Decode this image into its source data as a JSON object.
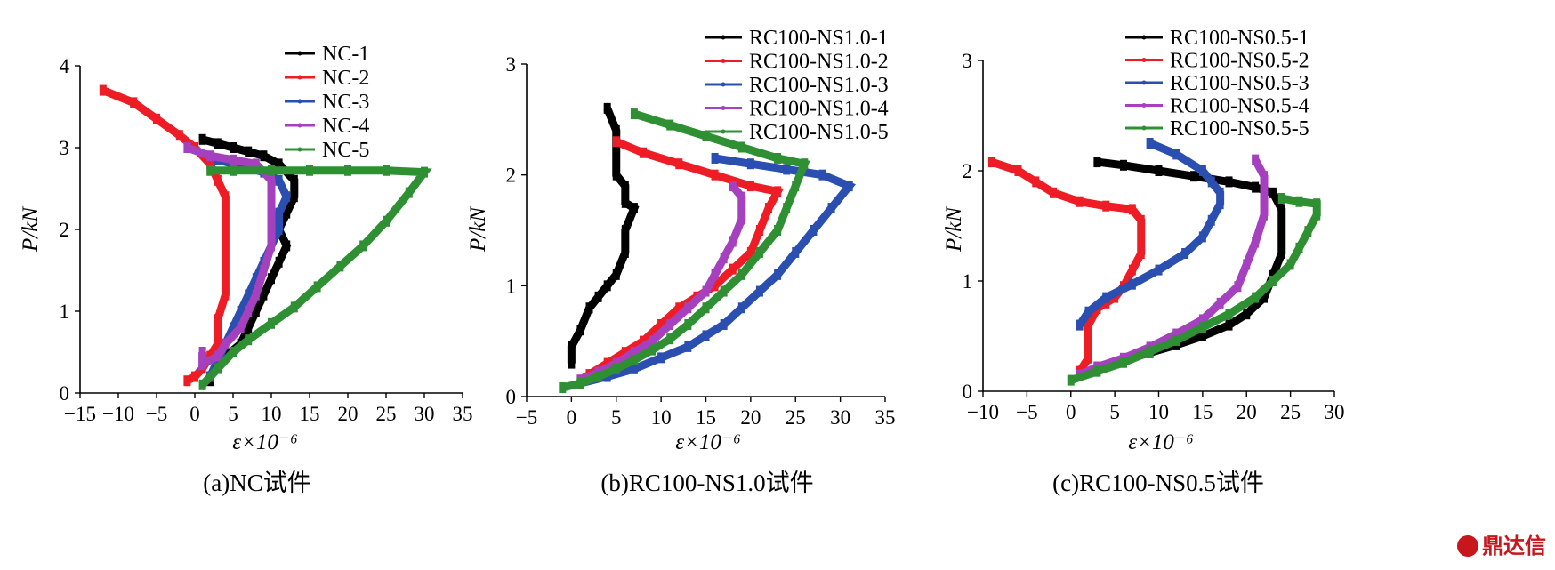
{
  "watermark": "鼎达信",
  "chart_data": [
    {
      "type": "line",
      "caption": "(a)NC试件",
      "xlabel": "ε×10⁻⁶",
      "ylabel": "P/kN",
      "xlim": [
        -15,
        35
      ],
      "ylim": [
        0,
        4
      ],
      "xticks": [
        -15,
        -10,
        -5,
        0,
        5,
        10,
        15,
        20,
        25,
        30,
        35
      ],
      "yticks": [
        0,
        1,
        2,
        3,
        4
      ],
      "legend_position": "top-right",
      "series": [
        {
          "name": "NC-1",
          "color": "#000000",
          "x": [
            1,
            3,
            5,
            7,
            9,
            11,
            13,
            13,
            12,
            11,
            12,
            11,
            10,
            9,
            8,
            7,
            6,
            4,
            3,
            2,
            2
          ],
          "y": [
            3.1,
            3.05,
            3.0,
            2.95,
            2.9,
            2.8,
            2.6,
            2.4,
            2.2,
            2.0,
            1.8,
            1.6,
            1.4,
            1.2,
            1.0,
            0.8,
            0.6,
            0.45,
            0.3,
            0.2,
            0.15
          ]
        },
        {
          "name": "NC-2",
          "color": "#ee1c25",
          "x": [
            -12,
            -8,
            -5,
            -2,
            0,
            2,
            3,
            4,
            4,
            4,
            4,
            4,
            3,
            3,
            2,
            1,
            0,
            -1
          ],
          "y": [
            3.7,
            3.55,
            3.35,
            3.15,
            3.0,
            2.8,
            2.6,
            2.4,
            2.2,
            2.0,
            1.6,
            1.2,
            0.9,
            0.6,
            0.45,
            0.3,
            0.2,
            0.15
          ]
        },
        {
          "name": "NC-3",
          "color": "#2b4fb0",
          "x": [
            3,
            5,
            7,
            9,
            11,
            12,
            11,
            11,
            10,
            9,
            8,
            7,
            6,
            5,
            4,
            3,
            2
          ],
          "y": [
            2.85,
            2.8,
            2.75,
            2.7,
            2.6,
            2.4,
            2.2,
            2.0,
            1.8,
            1.6,
            1.4,
            1.2,
            1.0,
            0.8,
            0.6,
            0.4,
            0.2
          ]
        },
        {
          "name": "NC-4",
          "color": "#a540bf",
          "x": [
            -1,
            2,
            5,
            8,
            10,
            10,
            10,
            10,
            9,
            8,
            7,
            6,
            4,
            3,
            1,
            1
          ],
          "y": [
            3.0,
            2.9,
            2.85,
            2.8,
            2.6,
            2.4,
            2.1,
            1.8,
            1.5,
            1.2,
            1.0,
            0.8,
            0.6,
            0.45,
            0.35,
            0.5
          ]
        },
        {
          "name": "NC-5",
          "color": "#2e9033",
          "x": [
            2,
            5,
            10,
            15,
            20,
            25,
            30,
            28,
            25,
            22,
            19,
            16,
            13,
            10,
            7,
            5,
            3,
            1
          ],
          "y": [
            2.72,
            2.72,
            2.72,
            2.72,
            2.72,
            2.72,
            2.7,
            2.45,
            2.1,
            1.8,
            1.55,
            1.3,
            1.05,
            0.85,
            0.65,
            0.5,
            0.3,
            0.1
          ]
        }
      ]
    },
    {
      "type": "line",
      "caption": "(b)RC100-NS1.0试件",
      "xlabel": "ε×10⁻⁶",
      "ylabel": "P/kN",
      "xlim": [
        -5,
        35
      ],
      "ylim": [
        0,
        3
      ],
      "xticks": [
        -5,
        0,
        5,
        10,
        15,
        20,
        25,
        30,
        35
      ],
      "yticks": [
        0,
        1,
        2,
        3
      ],
      "legend_position": "top-right",
      "series": [
        {
          "name": "RC100-NS1.0-1",
          "color": "#000000",
          "x": [
            4,
            5,
            5,
            5,
            6,
            6,
            7,
            6,
            6,
            5,
            4,
            3,
            2,
            1,
            0,
            0
          ],
          "y": [
            2.6,
            2.4,
            2.2,
            2.0,
            1.9,
            1.75,
            1.7,
            1.5,
            1.3,
            1.1,
            1.0,
            0.9,
            0.8,
            0.6,
            0.45,
            0.3
          ]
        },
        {
          "name": "RC100-NS1.0-2",
          "color": "#ee1c25",
          "x": [
            5,
            8,
            12,
            16,
            20,
            23,
            22,
            21,
            20,
            18,
            16,
            14,
            12,
            10,
            8,
            6,
            4,
            2,
            1
          ],
          "y": [
            2.3,
            2.2,
            2.1,
            2.0,
            1.9,
            1.85,
            1.7,
            1.5,
            1.3,
            1.15,
            1.0,
            0.9,
            0.8,
            0.65,
            0.5,
            0.4,
            0.3,
            0.2,
            0.15
          ]
        },
        {
          "name": "RC100-NS1.0-3",
          "color": "#2b4fb0",
          "x": [
            16,
            20,
            24,
            28,
            31,
            29,
            27,
            25,
            23,
            21,
            19,
            17,
            15,
            13,
            10,
            7,
            4,
            1
          ],
          "y": [
            2.15,
            2.1,
            2.05,
            2.0,
            1.9,
            1.7,
            1.5,
            1.3,
            1.1,
            0.95,
            0.8,
            0.65,
            0.55,
            0.45,
            0.35,
            0.25,
            0.18,
            0.12
          ]
        },
        {
          "name": "RC100-NS1.0-4",
          "color": "#a540bf",
          "x": [
            18,
            19,
            19,
            18,
            17,
            16,
            15,
            13,
            11,
            9,
            7,
            5,
            3,
            1
          ],
          "y": [
            1.9,
            1.8,
            1.6,
            1.4,
            1.25,
            1.1,
            0.95,
            0.8,
            0.65,
            0.5,
            0.4,
            0.3,
            0.22,
            0.15
          ]
        },
        {
          "name": "RC100-NS1.0-5",
          "color": "#2e9033",
          "x": [
            7,
            11,
            15,
            19,
            23,
            26,
            25,
            24,
            23,
            21,
            19,
            17,
            15,
            13,
            11,
            9,
            7,
            5,
            3,
            1,
            -1
          ],
          "y": [
            2.55,
            2.45,
            2.35,
            2.25,
            2.15,
            2.1,
            1.9,
            1.7,
            1.5,
            1.3,
            1.1,
            0.95,
            0.8,
            0.65,
            0.52,
            0.42,
            0.33,
            0.25,
            0.18,
            0.12,
            0.08
          ]
        }
      ]
    },
    {
      "type": "line",
      "caption": "(c)RC100-NS0.5试件",
      "xlabel": "ε×10⁻⁶",
      "ylabel": "P/kN",
      "xlim": [
        -10,
        30
      ],
      "ylim": [
        0,
        3
      ],
      "xticks": [
        -10,
        -5,
        0,
        5,
        10,
        15,
        20,
        25,
        30
      ],
      "yticks": [
        0,
        1,
        2,
        3
      ],
      "legend_position": "top-right",
      "series": [
        {
          "name": "RC100-NS0.5-1",
          "color": "#000000",
          "x": [
            3,
            6,
            10,
            14,
            18,
            21,
            23,
            24,
            24,
            24,
            23,
            22,
            20,
            18,
            15,
            12,
            9,
            6,
            3
          ],
          "y": [
            2.08,
            2.05,
            2.0,
            1.95,
            1.9,
            1.85,
            1.8,
            1.65,
            1.45,
            1.25,
            1.05,
            0.85,
            0.7,
            0.6,
            0.5,
            0.42,
            0.35,
            0.28,
            0.22
          ]
        },
        {
          "name": "RC100-NS0.5-2",
          "color": "#ee1c25",
          "x": [
            -9,
            -6,
            -4,
            -2,
            1,
            4,
            7,
            8,
            8,
            8,
            7,
            6,
            5,
            4,
            3,
            2,
            2,
            2,
            1
          ],
          "y": [
            2.08,
            2.0,
            1.9,
            1.8,
            1.72,
            1.68,
            1.65,
            1.55,
            1.4,
            1.25,
            1.1,
            0.95,
            0.85,
            0.8,
            0.75,
            0.6,
            0.45,
            0.3,
            0.18
          ]
        },
        {
          "name": "RC100-NS0.5-3",
          "color": "#2b4fb0",
          "x": [
            9,
            12,
            15,
            16,
            17,
            17,
            16,
            15,
            13,
            10,
            7,
            4,
            2,
            1
          ],
          "y": [
            2.25,
            2.15,
            2.0,
            1.9,
            1.8,
            1.7,
            1.55,
            1.4,
            1.25,
            1.1,
            0.97,
            0.85,
            0.72,
            0.6
          ]
        },
        {
          "name": "RC100-NS0.5-4",
          "color": "#a540bf",
          "x": [
            21,
            22,
            22,
            22,
            21,
            20,
            19,
            17,
            15,
            12,
            9,
            6,
            3,
            1
          ],
          "y": [
            2.1,
            1.95,
            1.8,
            1.6,
            1.35,
            1.15,
            0.95,
            0.8,
            0.65,
            0.52,
            0.4,
            0.3,
            0.22,
            0.15
          ]
        },
        {
          "name": "RC100-NS0.5-5",
          "color": "#2e9033",
          "x": [
            24,
            26,
            28,
            28,
            27,
            26,
            25,
            23,
            21,
            18,
            15,
            12,
            9,
            6,
            3,
            0
          ],
          "y": [
            1.75,
            1.72,
            1.7,
            1.6,
            1.45,
            1.3,
            1.15,
            1.0,
            0.85,
            0.7,
            0.58,
            0.46,
            0.36,
            0.26,
            0.18,
            0.1
          ]
        }
      ]
    }
  ]
}
